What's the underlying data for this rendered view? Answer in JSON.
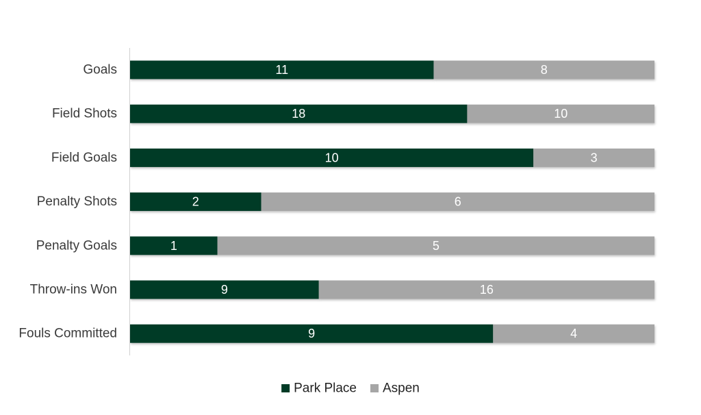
{
  "chart_data": {
    "type": "bar",
    "orientation": "horizontal",
    "stacking": "percent",
    "categories": [
      "Goals",
      "Field Shots",
      "Field Goals",
      "Penalty Shots",
      "Penalty Goals",
      "Throw-ins Won",
      "Fouls Committed"
    ],
    "series": [
      {
        "name": "Park Place",
        "values": [
          11,
          18,
          10,
          2,
          1,
          9,
          9
        ],
        "color": "#003b26"
      },
      {
        "name": "Aspen",
        "values": [
          8,
          10,
          3,
          6,
          5,
          16,
          4
        ],
        "color": "#a6a6a6"
      }
    ],
    "title": "",
    "xlabel": "",
    "ylabel": "",
    "legend": "bottom",
    "grid": false,
    "data_labels": true
  }
}
